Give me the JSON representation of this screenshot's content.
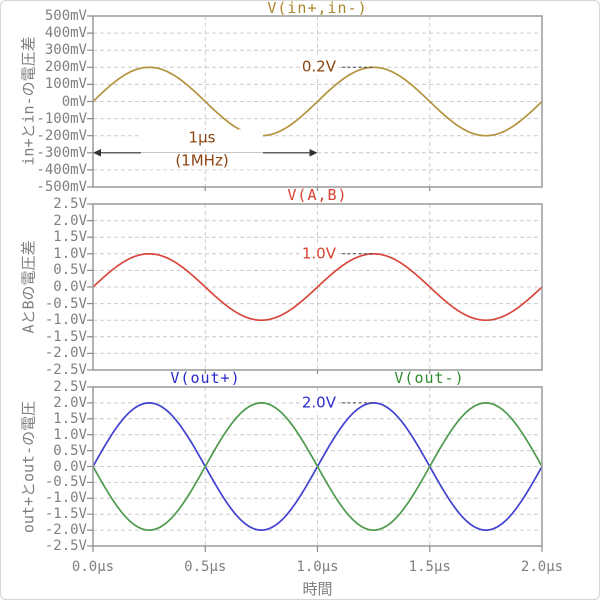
{
  "figure": {
    "xlabel": "時間",
    "x_tick_labels": [
      "0.0μs",
      "0.5μs",
      "1.0μs",
      "1.5μs",
      "2.0μs"
    ],
    "background": "#ffffff",
    "grid_color": "#cccccc",
    "frame_color": "#a0a0a0",
    "tick_text_color": "#808080"
  },
  "panels": [
    {
      "title": "V(in+,in-)",
      "title_color": "#a8862a",
      "ylabel": "in+とin-の電圧差",
      "y_tick_labels": [
        "500mV",
        "400mV",
        "300mV",
        "200mV",
        "100mV",
        "0mV",
        "-100mV",
        "-200mV",
        "-300mV",
        "-400mV",
        "-500mV"
      ],
      "peak_annotation": {
        "text": "0.2V",
        "value_V": 0.2,
        "t_us": 1.25,
        "color": "#8b4513"
      },
      "period_annotation": {
        "line1": "1μs",
        "line2": "(1MHz)",
        "from_us": 0,
        "to_us": 1,
        "at_V": -0.3,
        "color": "#8b4513",
        "arrow_color": "#333333"
      }
    },
    {
      "title": "V(A,B)",
      "title_color": "#d6402f",
      "ylabel": "AとBの電圧差",
      "y_tick_labels": [
        "2.5V",
        "2.0V",
        "1.5V",
        "1.0V",
        "0.5V",
        "0.0V",
        "-0.5V",
        "-1.0V",
        "-1.5V",
        "-2.0V",
        "-2.5V"
      ],
      "peak_annotation": {
        "text": "1.0V",
        "value_V": 1.0,
        "t_us": 1.25,
        "color": "#d6402f"
      }
    },
    {
      "titles": [
        {
          "text": "V(out+)",
          "color": "#2929cc"
        },
        {
          "text": "V(out-)",
          "color": "#2e8b2e"
        }
      ],
      "ylabel": "out+とout-の電圧",
      "y_tick_labels": [
        "2.5V",
        "2.0V",
        "1.5V",
        "1.0V",
        "0.5V",
        "0.0V",
        "-0.5V",
        "-1.0V",
        "-1.5V",
        "-2.0V",
        "-2.5V"
      ],
      "peak_annotation": {
        "text": "2.0V",
        "value_V": 2.0,
        "t_us": 1.25,
        "color": "#2b2bd0"
      }
    }
  ],
  "chart_data": [
    {
      "type": "line",
      "title": "V(in+,in-)",
      "xlabel": "時間",
      "ylabel": "in+とin-の電圧差",
      "x_unit": "μs",
      "xlim": [
        0,
        2
      ],
      "ylim": [
        -0.5,
        0.5
      ],
      "y_tick_step_V": 0.1,
      "x_tick_step_us": 0.5,
      "grid": true,
      "series": [
        {
          "name": "V(in+,in-)",
          "waveform": "sine",
          "amplitude_V": 0.2,
          "period_us": 1.0,
          "frequency_MHz": 1,
          "phase_deg": 0,
          "offset_V": 0,
          "color": "#b4923c"
        }
      ],
      "annotations": [
        "0.2V peak at t=1.25μs",
        "period 1μs (1MHz) marked from 0 to 1μs at -300mV"
      ]
    },
    {
      "type": "line",
      "title": "V(A,B)",
      "xlabel": "時間",
      "ylabel": "AとBの電圧差",
      "x_unit": "μs",
      "xlim": [
        0,
        2
      ],
      "ylim": [
        -2.5,
        2.5
      ],
      "y_tick_step_V": 0.5,
      "x_tick_step_us": 0.5,
      "grid": true,
      "series": [
        {
          "name": "V(A,B)",
          "waveform": "sine",
          "amplitude_V": 1.0,
          "period_us": 1.0,
          "frequency_MHz": 1,
          "phase_deg": 0,
          "offset_V": 0,
          "color": "#d8463c"
        }
      ],
      "annotations": [
        "1.0V peak at t=1.25μs"
      ]
    },
    {
      "type": "line",
      "title": "V(out+), V(out-)",
      "xlabel": "時間",
      "ylabel": "out+とout-の電圧",
      "x_unit": "μs",
      "xlim": [
        0,
        2
      ],
      "ylim": [
        -2.5,
        2.5
      ],
      "y_tick_step_V": 0.5,
      "x_tick_step_us": 0.5,
      "grid": true,
      "series": [
        {
          "name": "V(out+)",
          "waveform": "sine",
          "amplitude_V": 2.0,
          "period_us": 1.0,
          "frequency_MHz": 1,
          "phase_deg": 0,
          "offset_V": 0,
          "color": "#4242d0"
        },
        {
          "name": "V(out-)",
          "waveform": "sine",
          "amplitude_V": 2.0,
          "period_us": 1.0,
          "frequency_MHz": 1,
          "phase_deg": 180,
          "offset_V": 0,
          "color": "#4e9b4e"
        }
      ],
      "annotations": [
        "2.0V peak at t=1.25μs"
      ]
    }
  ]
}
